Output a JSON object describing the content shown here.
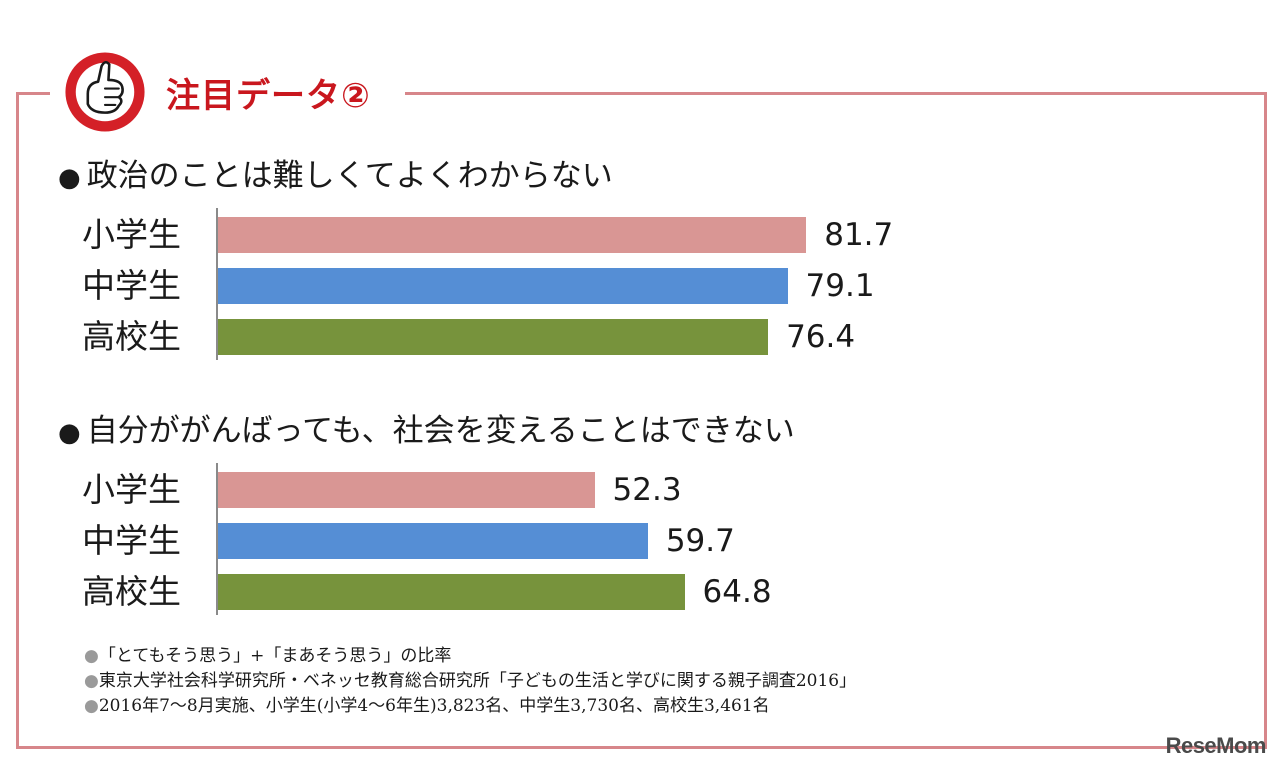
{
  "header": {
    "title": "注目データ②"
  },
  "chart_data": [
    {
      "type": "bar",
      "orientation": "horizontal",
      "title": "政治のことは難しくてよくわからない",
      "categories": [
        "小学生",
        "中学生",
        "高校生"
      ],
      "values": [
        81.7,
        79.1,
        76.4
      ],
      "value_labels": [
        "81.7",
        "79.1",
        "76.4"
      ],
      "colors": [
        "#d99694",
        "#558ed5",
        "#77933c"
      ],
      "xlim": [
        0,
        100
      ]
    },
    {
      "type": "bar",
      "orientation": "horizontal",
      "title": "自分ががんばっても、社会を変えることはできない",
      "categories": [
        "小学生",
        "中学生",
        "高校生"
      ],
      "values": [
        52.3,
        59.7,
        64.8
      ],
      "value_labels": [
        "52.3",
        "59.7",
        "64.8"
      ],
      "colors": [
        "#d99694",
        "#558ed5",
        "#77933c"
      ],
      "xlim": [
        0,
        100
      ]
    }
  ],
  "notes": [
    {
      "bullet": "●",
      "text": "「とてもそう思う」+「まあそう思う」の比率"
    },
    {
      "bullet": "●",
      "text": "東京大学社会科学研究所・ベネッセ教育総合研究所「子どもの生活と学びに関する親子調査2016」"
    },
    {
      "bullet": "●",
      "text": "2016年7～8月実施、小学生(小学4～6年生)3,823名、中学生3,730名、高校生3,461名"
    }
  ],
  "logo": {
    "text": "ReseMom"
  },
  "icons": {
    "badge": "thumbs-up-hand-icon"
  },
  "colors": {
    "frame": "#d7868a",
    "title": "#c9171e",
    "badge_red": "#d42027"
  }
}
